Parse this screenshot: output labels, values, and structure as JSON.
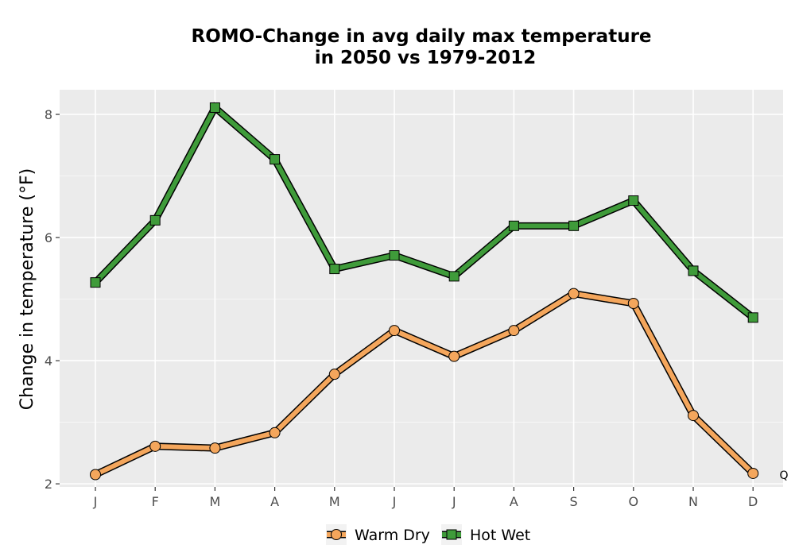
{
  "chart_data": {
    "type": "line",
    "title_line1": "ROMO-Change in avg daily max temperature",
    "title_line2": "in 2050 vs 1979-2012",
    "xlabel": "",
    "ylabel": "Change in temperature (°F)",
    "categories": [
      "J",
      "F",
      "M",
      "A",
      "M",
      "J",
      "J",
      "A",
      "S",
      "O",
      "N",
      "D"
    ],
    "ylim": [
      1.95,
      8.4
    ],
    "yticks": [
      2,
      4,
      6,
      8
    ],
    "grid": true,
    "legend_position": "bottom",
    "series": [
      {
        "name": "Warm Dry",
        "marker": "circle",
        "color": "#f4a65c",
        "values": [
          2.15,
          2.61,
          2.58,
          2.83,
          3.78,
          4.49,
          4.07,
          4.49,
          5.09,
          4.93,
          3.11,
          2.17
        ]
      },
      {
        "name": "Hot Wet",
        "marker": "square",
        "color": "#3f9b3a",
        "values": [
          5.27,
          6.28,
          8.11,
          7.27,
          5.49,
          5.71,
          5.37,
          6.19,
          6.19,
          6.6,
          5.46,
          4.7
        ]
      }
    ],
    "corner_mark": "Q"
  }
}
